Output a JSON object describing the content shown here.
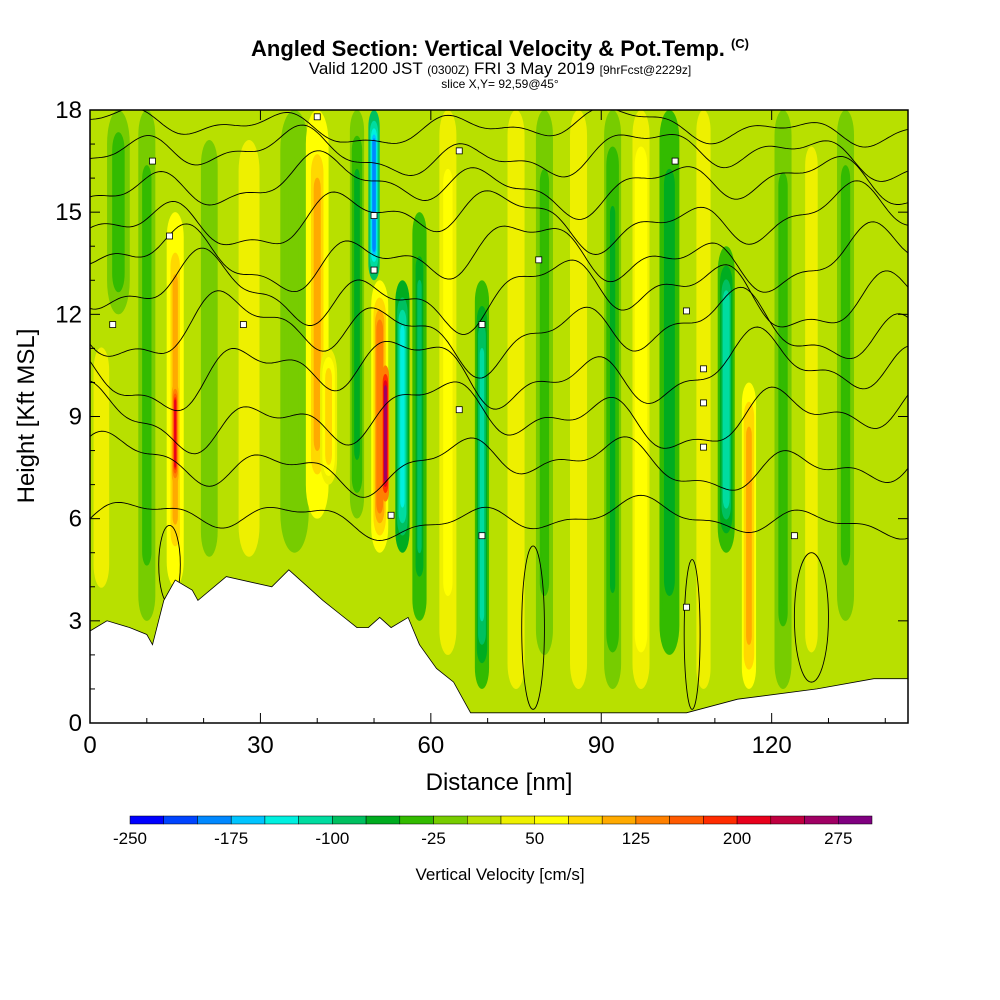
{
  "title": {
    "main": "Angled Section: Vertical Velocity & Pot.Temp.",
    "copyright": "(C)",
    "valid_prefix": "Valid 1200 JST",
    "valid_utc": "(0300Z)",
    "valid_date": "FRI 3 May 2019",
    "forecast": "[9hrFcst@2229z]",
    "slice": "slice X,Y= 92,59@45°"
  },
  "chart_data": {
    "type": "heatmap",
    "xlabel": "Distance [nm]",
    "ylabel": "Height [Kft MSL]",
    "xlim": [
      0,
      144
    ],
    "ylim": [
      0,
      18
    ],
    "x_ticks": [
      0,
      30,
      60,
      90,
      120
    ],
    "y_ticks": [
      0,
      3,
      6,
      9,
      12,
      15,
      18
    ],
    "colorbar": {
      "label": "Vertical Velocity [cm/s]",
      "ticks": [
        -250,
        -175,
        -100,
        -25,
        50,
        125,
        200,
        275
      ],
      "levels": [
        -250,
        -225,
        -200,
        -175,
        -150,
        -125,
        -100,
        -75,
        -50,
        -25,
        0,
        25,
        50,
        75,
        100,
        125,
        150,
        175,
        200,
        225,
        250,
        275,
        300
      ],
      "colors": [
        "#0000ff",
        "#0044ff",
        "#0088ff",
        "#00c4ff",
        "#00f0e0",
        "#00dca0",
        "#00c060",
        "#00ac20",
        "#33bb00",
        "#77cc00",
        "#b8e000",
        "#eef000",
        "#ffff00",
        "#ffd800",
        "#ffaa00",
        "#ff8000",
        "#ff5a00",
        "#ff2c00",
        "#e8001c",
        "#c00040",
        "#a00064",
        "#800080"
      ]
    },
    "velocity_columns": [
      {
        "x": 2,
        "w": 5,
        "v": 30,
        "bottom": 3,
        "top": 12
      },
      {
        "x": 5,
        "w": 4,
        "v": -40,
        "bottom": 12,
        "top": 18
      },
      {
        "x": 10,
        "w": 3,
        "v": -40,
        "bottom": 3,
        "top": 18
      },
      {
        "x": 15,
        "w": 3,
        "v": 110,
        "bottom": 4,
        "top": 15
      },
      {
        "x": 15,
        "w": 1.2,
        "v": 220,
        "bottom": 7,
        "top": 10
      },
      {
        "x": 21,
        "w": 4,
        "v": -10,
        "bottom": 4,
        "top": 18
      },
      {
        "x": 28,
        "w": 5,
        "v": 40,
        "bottom": 4,
        "top": 18
      },
      {
        "x": 36,
        "w": 5,
        "v": -25,
        "bottom": 5,
        "top": 18
      },
      {
        "x": 40,
        "w": 4,
        "v": 110,
        "bottom": 6,
        "top": 18
      },
      {
        "x": 42,
        "w": 3,
        "v": 90,
        "bottom": 7,
        "top": 11
      },
      {
        "x": 47,
        "w": 2.5,
        "v": -60,
        "bottom": 6,
        "top": 18
      },
      {
        "x": 50,
        "w": 2,
        "v": -190,
        "bottom": 13,
        "top": 18
      },
      {
        "x": 51,
        "w": 3,
        "v": 150,
        "bottom": 5,
        "top": 13
      },
      {
        "x": 52,
        "w": 1.3,
        "v": 280,
        "bottom": 6.5,
        "top": 10.5
      },
      {
        "x": 55,
        "w": 2.5,
        "v": -140,
        "bottom": 5,
        "top": 13
      },
      {
        "x": 58,
        "w": 2.5,
        "v": -80,
        "bottom": 3,
        "top": 15
      },
      {
        "x": 63,
        "w": 3,
        "v": 70,
        "bottom": 2,
        "top": 18
      },
      {
        "x": 69,
        "w": 2.5,
        "v": -110,
        "bottom": 1,
        "top": 13
      },
      {
        "x": 75,
        "w": 3,
        "v": 45,
        "bottom": 1,
        "top": 18
      },
      {
        "x": 80,
        "w": 3,
        "v": -40,
        "bottom": 2,
        "top": 18
      },
      {
        "x": 86,
        "w": 3,
        "v": 50,
        "bottom": 1,
        "top": 18
      },
      {
        "x": 92,
        "w": 3,
        "v": -55,
        "bottom": 1,
        "top": 18
      },
      {
        "x": 97,
        "w": 3,
        "v": 75,
        "bottom": 1,
        "top": 18
      },
      {
        "x": 102,
        "w": 3.5,
        "v": -75,
        "bottom": 2,
        "top": 18
      },
      {
        "x": 108,
        "w": 2.5,
        "v": 50,
        "bottom": 1,
        "top": 18
      },
      {
        "x": 112,
        "w": 3,
        "v": -120,
        "bottom": 5,
        "top": 14
      },
      {
        "x": 116,
        "w": 2.5,
        "v": 120,
        "bottom": 1,
        "top": 10
      },
      {
        "x": 122,
        "w": 3,
        "v": -35,
        "bottom": 1,
        "top": 18
      },
      {
        "x": 127,
        "w": 3,
        "v": 35,
        "bottom": 1,
        "top": 18
      },
      {
        "x": 133,
        "w": 3,
        "v": -35,
        "bottom": 3,
        "top": 18
      },
      {
        "x": 139,
        "w": 3,
        "v": 25,
        "bottom": 3,
        "top": 18
      }
    ],
    "terrain_kft": [
      [
        0,
        2.7
      ],
      [
        3,
        3
      ],
      [
        7,
        2.8
      ],
      [
        10,
        2.6
      ],
      [
        11,
        2.3
      ],
      [
        13,
        3.6
      ],
      [
        15,
        4.2
      ],
      [
        18,
        3.9
      ],
      [
        19,
        3.6
      ],
      [
        24,
        4.3
      ],
      [
        32,
        4.0
      ],
      [
        35,
        4.5
      ],
      [
        39,
        3.9
      ],
      [
        41,
        3.6
      ],
      [
        44,
        3.2
      ],
      [
        47,
        2.8
      ],
      [
        49,
        2.8
      ],
      [
        51,
        3.1
      ],
      [
        53,
        2.8
      ],
      [
        56,
        3.1
      ],
      [
        58,
        2.3
      ],
      [
        61,
        1.6
      ],
      [
        64,
        1.2
      ],
      [
        66,
        0.6
      ],
      [
        67,
        0.3
      ],
      [
        105,
        0.3
      ],
      [
        114,
        0.7
      ],
      [
        128,
        1.0
      ],
      [
        138,
        1.3
      ],
      [
        144,
        1.3
      ]
    ],
    "theta_contours": [
      {
        "y": 6.0,
        "amp": 0.6
      },
      {
        "y": 7.6,
        "amp": 0.9
      },
      {
        "y": 9.0,
        "amp": 1.1
      },
      {
        "y": 10.3,
        "amp": 1.2
      },
      {
        "y": 11.5,
        "amp": 1.2
      },
      {
        "y": 12.6,
        "amp": 1.2
      },
      {
        "y": 13.7,
        "amp": 1.1
      },
      {
        "y": 14.8,
        "amp": 1.0
      },
      {
        "y": 15.8,
        "amp": 0.9
      },
      {
        "y": 16.7,
        "amp": 0.8
      },
      {
        "y": 17.5,
        "amp": 0.6
      }
    ],
    "contour_labels": [
      {
        "x": 4,
        "y": 11.7
      },
      {
        "x": 11,
        "y": 16.5
      },
      {
        "x": 14,
        "y": 14.3
      },
      {
        "x": 27,
        "y": 11.7
      },
      {
        "x": 40,
        "y": 17.8
      },
      {
        "x": 50,
        "y": 14.9
      },
      {
        "x": 50,
        "y": 13.3
      },
      {
        "x": 53,
        "y": 6.1
      },
      {
        "x": 65,
        "y": 16.8
      },
      {
        "x": 65,
        "y": 9.2
      },
      {
        "x": 69,
        "y": 11.7
      },
      {
        "x": 69,
        "y": 5.5
      },
      {
        "x": 79,
        "y": 13.6
      },
      {
        "x": 103,
        "y": 16.5
      },
      {
        "x": 105,
        "y": 12.1
      },
      {
        "x": 108,
        "y": 10.4
      },
      {
        "x": 108,
        "y": 9.4
      },
      {
        "x": 108,
        "y": 8.1
      },
      {
        "x": 105,
        "y": 3.4
      },
      {
        "x": 124,
        "y": 5.5
      }
    ]
  }
}
